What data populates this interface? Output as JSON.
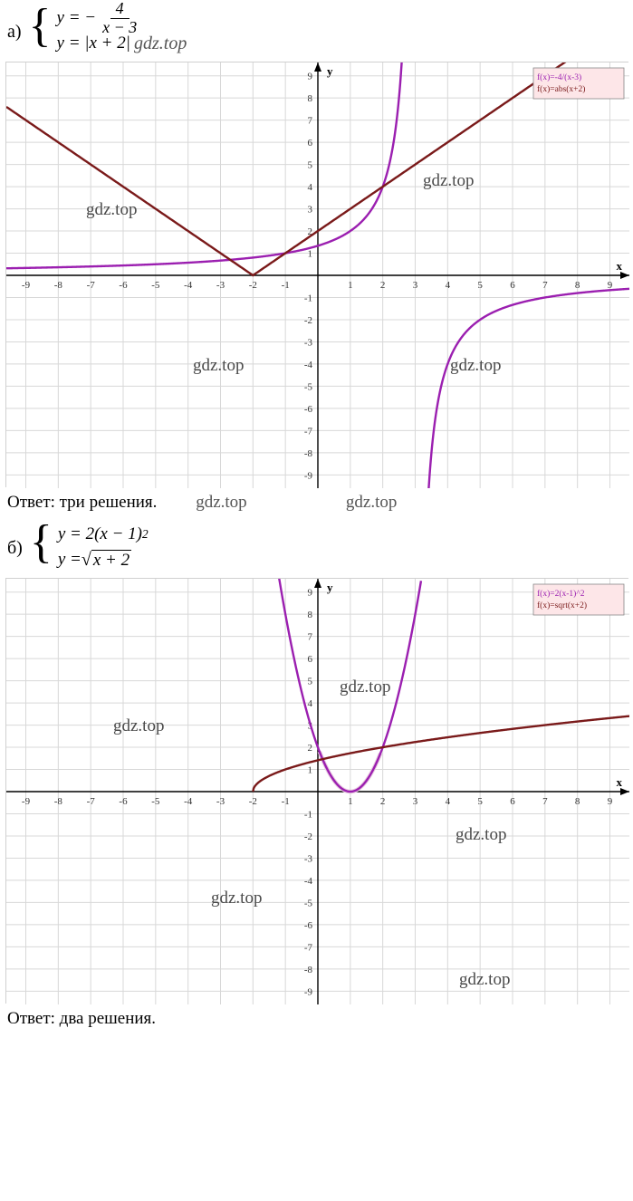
{
  "problem_a": {
    "label": "а)",
    "eq1_lhs": "y = −",
    "eq1_num": "4",
    "eq1_den": "x − 3",
    "eq2": "y = |x + 2|",
    "watermark": "gdz.top",
    "answer": "Ответ: три решения."
  },
  "problem_b": {
    "label": "б)",
    "eq1": "y = 2(x − 1)",
    "eq1_sup": "2",
    "eq2_lhs": "y = ",
    "eq2_rad": "x + 2",
    "answer": "Ответ: два решения."
  },
  "chart_a": {
    "type": "line",
    "xlim": [
      -9.6,
      9.6
    ],
    "ylim": [
      -9.6,
      9.6
    ],
    "xtick_step": 1,
    "ytick_step": 1,
    "grid_color": "#d8d8d8",
    "axis_color": "#000000",
    "background_color": "#ffffff",
    "axis_label_x": "x",
    "axis_label_y": "y",
    "axis_label_fontsize": 13,
    "tick_fontsize": 11,
    "legend_bg": "#fde6e8",
    "legend_border": "#888888",
    "legend_items": [
      {
        "text": "f(x)=-4/(x-3)",
        "color": "#9b1fb0"
      },
      {
        "text": "f(x)=abs(x+2)",
        "color": "#7a1a1a"
      }
    ],
    "watermarks": [
      "gdz.top",
      "gdz.top",
      "gdz.top",
      "gdz.top",
      "gdz.top",
      "gdz.top"
    ],
    "watermark_color": "#4a4a4a",
    "curves": [
      {
        "name": "hyperbola",
        "color": "#9b1fb0",
        "width": 2.4,
        "xmin": -9.6,
        "xmax": 2.9,
        "fn": "h",
        "branch": "left"
      },
      {
        "name": "hyperbola",
        "color": "#9b1fb0",
        "width": 2.4,
        "xmin": 3.1,
        "xmax": 9.6,
        "fn": "h",
        "branch": "right"
      },
      {
        "name": "abs",
        "color": "#7a1a1a",
        "width": 2.4,
        "xmin": -9.6,
        "xmax": 9.6,
        "fn": "abs"
      }
    ]
  },
  "chart_b": {
    "type": "line",
    "xlim": [
      -9.6,
      9.6
    ],
    "ylim": [
      -9.6,
      9.6
    ],
    "xtick_step": 1,
    "ytick_step": 1,
    "grid_color": "#d8d8d8",
    "axis_color": "#000000",
    "background_color": "#ffffff",
    "axis_label_x": "x",
    "axis_label_y": "y",
    "axis_label_fontsize": 13,
    "tick_fontsize": 11,
    "legend_bg": "#fde6e8",
    "legend_border": "#888888",
    "legend_items": [
      {
        "text": "f(x)=2(x-1)^2",
        "color": "#9b1fb0"
      },
      {
        "text": "f(x)=sqrt(x+2)",
        "color": "#7a1a1a"
      }
    ],
    "watermarks": [
      "gdz.top",
      "gdz.top",
      "gdz.top",
      "gdz.top",
      "gdz.top"
    ],
    "watermark_color": "#4a4a4a",
    "curves": [
      {
        "name": "parabola",
        "color": "#9b1fb0",
        "width": 2.4,
        "xmin": -1.2,
        "xmax": 3.2,
        "fn": "par"
      },
      {
        "name": "sqrt",
        "color": "#7a1a1a",
        "width": 2.4,
        "xmin": -2,
        "xmax": 9.6,
        "fn": "sqrt"
      }
    ],
    "parabola_highlight": {
      "color": "#e8c8e0",
      "xr": [
        0.05,
        1.95
      ]
    }
  }
}
